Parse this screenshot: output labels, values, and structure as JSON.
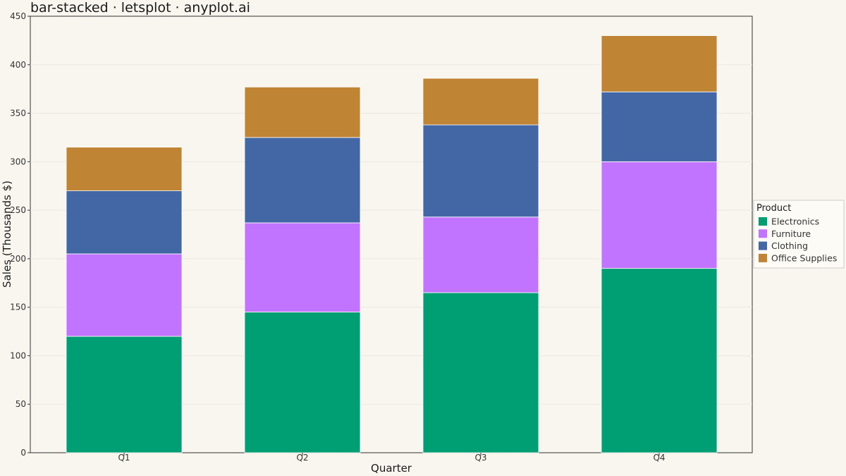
{
  "chart_data": {
    "type": "bar",
    "stacked": true,
    "title": "bar-stacked · letsplot · anyplot.ai",
    "xlabel": "Quarter",
    "ylabel": "Sales (Thousands $)",
    "categories": [
      "Q1",
      "Q2",
      "Q3",
      "Q4"
    ],
    "ylim": [
      0,
      450
    ],
    "yticks": [
      0,
      50,
      100,
      150,
      200,
      250,
      300,
      350,
      400,
      450
    ],
    "grid": true,
    "legend": {
      "title": "Product",
      "position": "right"
    },
    "series": [
      {
        "name": "Electronics",
        "color": "#009E73",
        "values": [
          120,
          145,
          165,
          190
        ]
      },
      {
        "name": "Furniture",
        "color": "#C174FF",
        "values": [
          85,
          92,
          78,
          110
        ]
      },
      {
        "name": "Clothing",
        "color": "#4367A5",
        "values": [
          65,
          88,
          95,
          72
        ]
      },
      {
        "name": "Office Supplies",
        "color": "#BF8434",
        "values": [
          45,
          52,
          48,
          58
        ]
      }
    ]
  }
}
